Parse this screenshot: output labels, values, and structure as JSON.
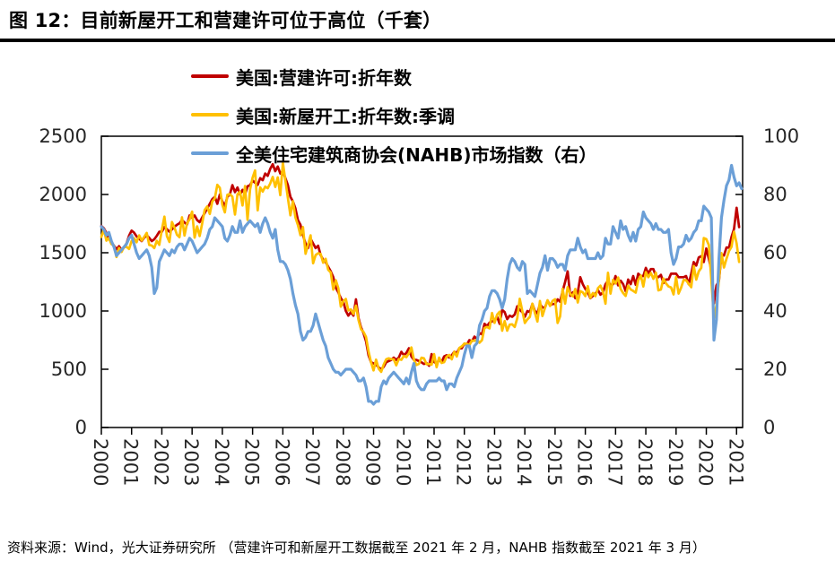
{
  "header": {
    "title": "图 12：目前新屋开工和营建许可位于高位（千套）"
  },
  "footer": {
    "source_note": "资料来源：Wind，光大证券研究所 （营建许可和新屋开工数据截至 2021 年 2 月，NAHB 指数截至 2021 年 3 月）"
  },
  "chart_data": {
    "type": "line",
    "title": "目前新屋开工和营建许可位于高位（千套）",
    "x_unit": "monthly, Jan 2000 - Mar 2021",
    "x_domain": [
      2000,
      2021.2
    ],
    "x_tick_labels": [
      "2000",
      "2001",
      "2002",
      "2003",
      "2004",
      "2005",
      "2006",
      "2007",
      "2008",
      "2009",
      "2010",
      "2011",
      "2012",
      "2013",
      "2014",
      "2015",
      "2016",
      "2017",
      "2018",
      "2019",
      "2020",
      "2021"
    ],
    "left_axis": {
      "range": [
        0,
        2500
      ],
      "ticks": [
        0,
        500,
        1000,
        1500,
        2000,
        2500
      ]
    },
    "right_axis": {
      "range": [
        0,
        100
      ],
      "ticks": [
        0,
        20,
        40,
        60,
        80,
        100
      ]
    },
    "grid": false,
    "legend_position": "top-inside",
    "series": [
      {
        "name": "美国:营建许可:折年数",
        "color": "#C00000",
        "axis": "left",
        "values": [
          1730,
          1710,
          1670,
          1620,
          1590,
          1560,
          1530,
          1556,
          1525,
          1546,
          1580,
          1646,
          1690,
          1672,
          1640,
          1620,
          1600,
          1630,
          1650,
          1628,
          1600,
          1615,
          1645,
          1680,
          1680,
          1720,
          1702,
          1680,
          1700,
          1722,
          1740,
          1752,
          1780,
          1760,
          1742,
          1820,
          1800,
          1820,
          1780,
          1762,
          1802,
          1840,
          1880,
          1920,
          1960,
          1980,
          1920,
          2000,
          1940,
          1900,
          1980,
          2000,
          2080,
          2020,
          2060,
          2000,
          2040,
          2000,
          2070,
          2080,
          2120,
          2100,
          2082,
          2140,
          2122,
          2180,
          2160,
          2220,
          2260,
          2200,
          2240,
          2180,
          2200,
          2140,
          2080,
          1980,
          1940,
          1880,
          1780,
          1740,
          1650,
          1580,
          1540,
          1620,
          1580,
          1540,
          1560,
          1480,
          1440,
          1420,
          1380,
          1340,
          1290,
          1200,
          1160,
          1110,
          1080,
          1000,
          960,
          990,
          960,
          1100,
          940,
          860,
          810,
          740,
          620,
          560,
          550,
          540,
          516,
          500,
          520,
          560,
          570,
          580,
          600,
          580,
          600,
          650,
          620,
          640,
          680,
          610,
          580,
          580,
          570,
          560,
          545,
          552,
          530,
          630,
          562,
          550,
          580,
          560,
          610,
          620,
          600,
          620,
          650,
          640,
          680,
          680,
          720,
          710,
          750,
          740,
          780,
          760,
          810,
          800,
          890,
          870,
          900,
          910,
          920,
          950,
          890,
          1010,
          990,
          930,
          960,
          950,
          970,
          1040,
          1010,
          990,
          950,
          1000,
          990,
          1060,
          1000,
          980,
          1060,
          1030,
          1030,
          1090,
          1050,
          1060,
          1060,
          1100,
          1080,
          1170,
          1250,
          1340,
          1130,
          1160,
          1110,
          1160,
          1290,
          1230,
          1190,
          1160,
          1110,
          1130,
          1150,
          1180,
          1140,
          1160,
          1230,
          1260,
          1220,
          1230,
          1300,
          1220,
          1260,
          1230,
          1170,
          1270,
          1230,
          1300,
          1225,
          1320,
          1300,
          1300,
          1370,
          1320,
          1360,
          1360,
          1300,
          1290,
          1310,
          1240,
          1270,
          1270,
          1320,
          1320,
          1320,
          1290,
          1290,
          1290,
          1300,
          1230,
          1320,
          1420,
          1390,
          1460,
          1470,
          1420,
          1536,
          1450,
          1350,
          1066,
          1220,
          1258,
          1483,
          1476,
          1545,
          1544,
          1635,
          1704,
          1886,
          1720
        ]
      },
      {
        "name": "美国:新屋开工:折年数:季调",
        "color": "#FFC000",
        "axis": "left",
        "values": [
          1636,
          1700,
          1604,
          1626,
          1575,
          1559,
          1463,
          1541,
          1507,
          1549,
          1551,
          1532,
          1600,
          1625,
          1590,
          1649,
          1605,
          1636,
          1670,
          1567,
          1562,
          1540,
          1602,
          1568,
          1698,
          1810,
          1642,
          1592,
          1764,
          1717,
          1655,
          1633,
          1804,
          1648,
          1753,
          1788,
          1853,
          1629,
          1726,
          1643,
          1751,
          1867,
          1897,
          1833,
          1939,
          1967,
          2083,
          2057,
          1911,
          1846,
          1998,
          2003,
          1981,
          1828,
          2002,
          2024,
          1905,
          2072,
          1782,
          2042,
          2144,
          2207,
          1864,
          2061,
          2025,
          2068,
          2054,
          2095,
          2151,
          2065,
          2147,
          1994,
          2273,
          2119,
          1969,
          1821,
          1942,
          1802,
          1737,
          1650,
          1720,
          1491,
          1570,
          1649,
          1409,
          1480,
          1495,
          1490,
          1415,
          1448,
          1354,
          1330,
          1183,
          1264,
          1197,
          1037,
          1084,
          1103,
          1005,
          1013,
          975,
          1046,
          923,
          844,
          820,
          777,
          652,
          560,
          490,
          582,
          505,
          478,
          540,
          585,
          594,
          586,
          585,
          534,
          588,
          581,
          614,
          604,
          636,
          687,
          583,
          536,
          546,
          599,
          594,
          543,
          545,
          539,
          630,
          517,
          600,
          554,
          561,
          608,
          623,
          585,
          650,
          610,
          682,
          697,
          720,
          718,
          706,
          747,
          744,
          754,
          728,
          749,
          854,
          863,
          851,
          983,
          898,
          969,
          994,
          831,
          914,
          831,
          883,
          885,
          863,
          936,
          1105,
          999,
          897,
          928,
          950,
          1063,
          984,
          909,
          1085,
          957,
          1028,
          1092,
          1043,
          1087,
          1101,
          897,
          954,
          1191,
          1063,
          1204,
          1147,
          1126,
          1189,
          1073,
          1171,
          1160,
          1128,
          1213,
          1113,
          1155,
          1128,
          1195,
          1218,
          1164,
          1062,
          1328,
          1149,
          1268,
          1236,
          1288,
          1189,
          1154,
          1129,
          1217,
          1185,
          1172,
          1158,
          1265,
          1303,
          1210,
          1334,
          1290,
          1327,
          1276,
          1329,
          1177,
          1184,
          1279,
          1236,
          1211,
          1202,
          1142,
          1291,
          1149,
          1199,
          1267,
          1264,
          1233,
          1204,
          1386,
          1269,
          1340,
          1371,
          1626,
          1617,
          1567,
          1269,
          938,
          1046,
          1265,
          1497,
          1373,
          1448,
          1514,
          1551,
          1680,
          1580,
          1421
        ]
      },
      {
        "name": "全美住宅建筑商协会(NAHB)市场指数（右）",
        "color": "#6B9FD7",
        "axis": "right",
        "values": [
          69,
          68,
          66,
          67,
          64,
          62,
          59,
          60,
          61,
          62,
          63,
          65,
          66,
          63,
          60,
          58,
          59,
          60,
          61,
          59,
          55,
          46,
          48,
          57,
          59,
          61,
          60,
          59,
          61,
          60,
          62,
          63,
          63,
          61,
          63,
          65,
          64,
          62,
          60,
          61,
          62,
          63,
          65,
          68,
          69,
          72,
          71,
          70,
          69,
          65,
          64,
          66,
          69,
          67,
          67,
          71,
          67,
          69,
          70,
          71,
          70,
          69,
          70,
          67,
          70,
          72,
          70,
          67,
          65,
          68,
          61,
          57,
          57,
          56,
          54,
          51,
          46,
          42,
          39,
          33,
          30,
          31,
          33,
          33,
          35,
          39,
          36,
          33,
          30,
          28,
          24,
          22,
          20,
          19,
          19,
          18,
          19,
          20,
          20,
          20,
          19,
          18,
          16,
          16,
          17,
          14,
          9,
          9,
          8,
          9,
          9,
          14,
          16,
          15,
          17,
          18,
          19,
          18,
          17,
          16,
          15,
          17,
          15,
          19,
          22,
          16,
          14,
          13,
          13,
          15,
          16,
          16,
          16,
          16,
          17,
          16,
          16,
          13,
          15,
          15,
          14,
          17,
          19,
          21,
          25,
          28,
          28,
          24,
          28,
          29,
          35,
          37,
          40,
          41,
          45,
          47,
          47,
          46,
          44,
          41,
          44,
          51,
          56,
          58,
          57,
          55,
          54,
          57,
          56,
          46,
          47,
          46,
          45,
          49,
          53,
          55,
          59,
          54,
          58,
          58,
          57,
          55,
          56,
          56,
          54,
          59,
          61,
          61,
          61,
          65,
          62,
          60,
          61,
          58,
          58,
          58,
          58,
          60,
          58,
          59,
          65,
          63,
          63,
          69,
          67,
          65,
          71,
          68,
          69,
          66,
          64,
          67,
          64,
          68,
          69,
          74,
          72,
          71,
          70,
          68,
          70,
          68,
          68,
          67,
          67,
          68,
          60,
          56,
          58,
          62,
          62,
          63,
          66,
          64,
          65,
          67,
          68,
          71,
          71,
          76,
          75,
          74,
          72,
          30,
          37,
          58,
          72,
          78,
          83,
          85,
          90,
          86,
          83,
          84,
          82
        ]
      }
    ]
  }
}
